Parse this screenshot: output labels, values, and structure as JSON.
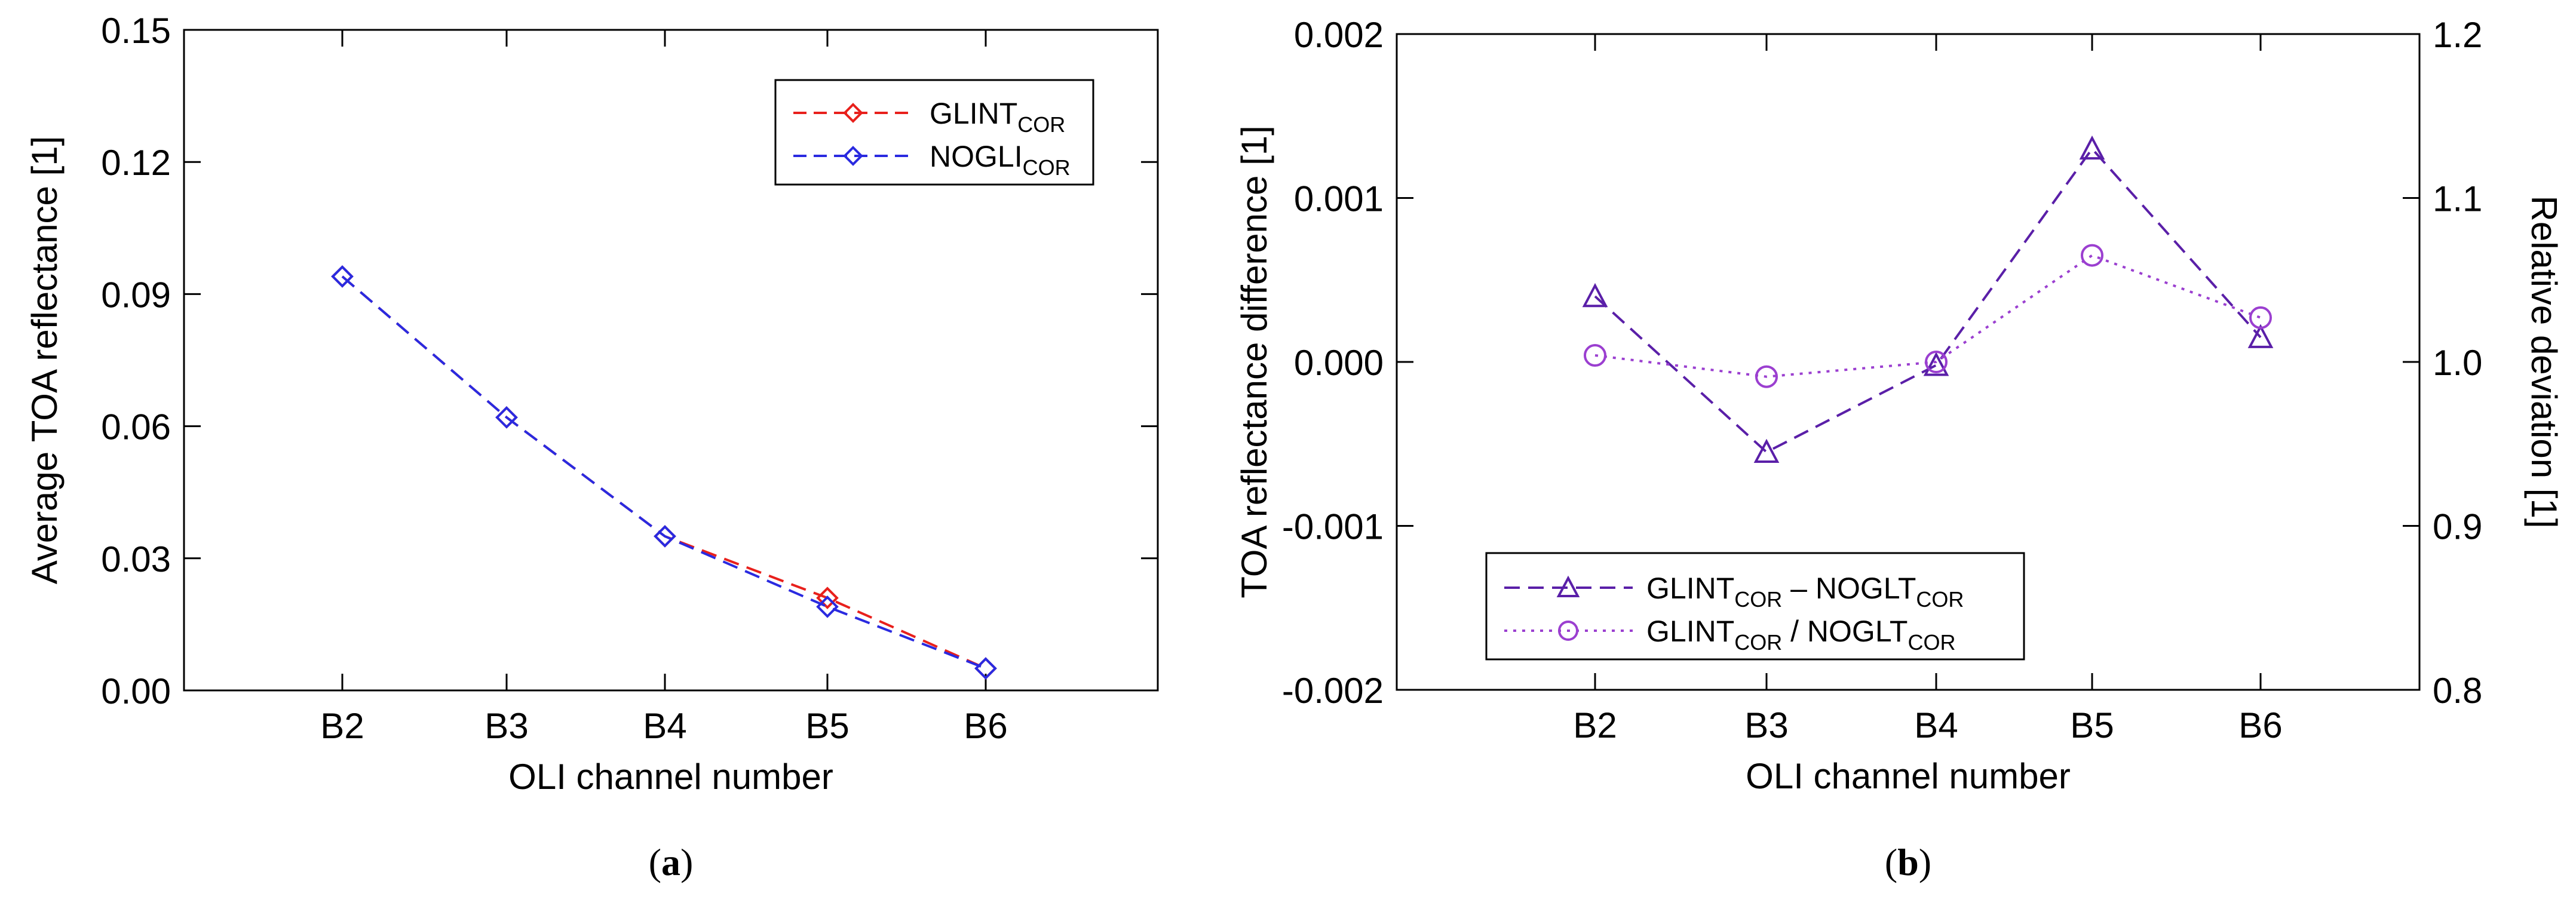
{
  "chart_data": [
    {
      "type": "line",
      "panel_label_prefix": "(",
      "panel_label_letter": "a",
      "panel_label_suffix": ")",
      "categories": [
        "B2",
        "B3",
        "B4",
        "B5",
        "B6"
      ],
      "xlabel": "OLI channel number",
      "ylabel": "Average TOA reflectance [1]",
      "ylim": [
        0.0,
        0.15
      ],
      "yticks": [
        "0.00",
        "0.03",
        "0.06",
        "0.09",
        "0.12",
        "0.15"
      ],
      "legend_position": "top-right",
      "series": [
        {
          "name": "GLINT",
          "name_sub": "COR",
          "color": "#e8201c",
          "marker": "diamond",
          "line_style": "dashed",
          "values": [
            0.094,
            0.062,
            0.035,
            0.021,
            0.005
          ]
        },
        {
          "name": "NOGLI",
          "name_sub": "COR",
          "color": "#2a2ae0",
          "marker": "diamond",
          "line_style": "dashed",
          "values": [
            0.094,
            0.062,
            0.035,
            0.019,
            0.005
          ]
        }
      ]
    },
    {
      "type": "line",
      "panel_label_prefix": "(",
      "panel_label_letter": "b",
      "panel_label_suffix": ")",
      "categories": [
        "B2",
        "B3",
        "B4",
        "B5",
        "B6"
      ],
      "xlabel": "OLI channel number",
      "ylabel": "TOA reflectance difference [1]",
      "ylabel_right": "Relative deviation [1]",
      "ylim": [
        -0.002,
        0.002
      ],
      "yticks": [
        "-0.002",
        "-0.001",
        "0.000",
        "0.001",
        "0.002"
      ],
      "ylim_right": [
        0.8,
        1.2
      ],
      "yticks_right": [
        "0.8",
        "0.9",
        "1.0",
        "1.1",
        "1.2"
      ],
      "legend_position": "bottom-left",
      "series": [
        {
          "name_parts": [
            "GLINT",
            "COR",
            " – NOGLT",
            "COR"
          ],
          "color": "#5a1fa8",
          "marker": "triangle",
          "line_style": "dashed",
          "axis": "left",
          "values": [
            0.0004,
            -0.00055,
            -2e-05,
            0.0013,
            0.00015
          ]
        },
        {
          "name_parts": [
            "GLINT",
            "COR",
            " / NOGLT",
            "COR"
          ],
          "color": "#9b3fd0",
          "marker": "circle",
          "line_style": "dotted",
          "axis": "right",
          "values": [
            1.004,
            0.991,
            1.0,
            1.065,
            1.027
          ]
        }
      ]
    }
  ]
}
